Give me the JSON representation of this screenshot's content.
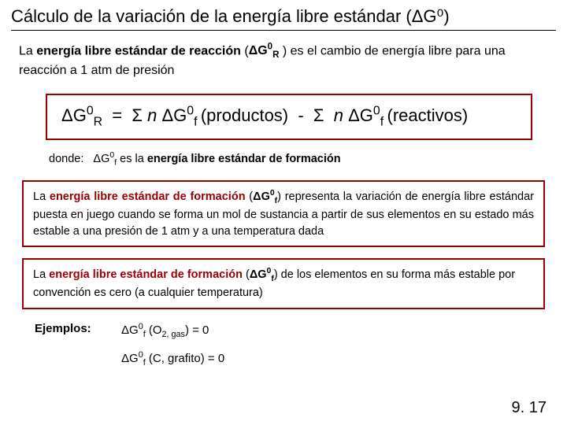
{
  "title": "Cálculo de la variación de la energía libre estándar (ΔG⁰)",
  "intro_html": "La <b>energía libre estándar de reacción</b> (<b>ΔG<span class='sup'>0</span><span class='sub'>R</span></b> ) es el cambio de energía libre para una reacción a 1 atm de presión",
  "formula_html": "ΔG<span class='sup'>0</span><span class='sub'>R</span>&nbsp; = &nbsp;Σ <i>n</i> ΔG<span class='sup'>0</span><span class='sub'>f </span>(productos) &nbsp;-&nbsp; Σ &nbsp;<i>n</i> ΔG<span class='sup'>0</span><span class='sub'>f </span>(reactivos)",
  "donde_html": "donde:&nbsp;&nbsp; ΔG<span class='sup'>0</span><span class='sub'>f</span> es la <b>energía libre estándar de formación</b>",
  "box1_html": "La <span class='darkred'>energía libre estándar de formación</span> (<b>ΔG<span class='sup'>0</span><span class='sub'>f</span></b>) representa la variación de energía libre estándar puesta en juego cuando se forma un mol de sustancia a partir de sus elementos en su estado más estable a una presión de 1 atm y a una temperatura dada",
  "box2_html": "La <span class='darkred'>energía libre estándar de formación</span> (<b>ΔG<span class='sup'>0</span><span class='sub'>f</span></b>) de los elementos en su forma más estable por convención es cero (a cualquier temperatura)",
  "ejemplos_label": "Ejemplos:",
  "ej1_html": "ΔG<span class='sup'>0</span><span class='sub'>f</span> (O<span class='sub'>2, gas</span>) = 0",
  "ej2_html": "ΔG<span class='sup'>0</span><span class='sub'>f</span> (C, grafito) = 0",
  "page_num": "9. 17",
  "colors": {
    "box_border": "#9a0000",
    "dark_red": "#9a0000",
    "text": "#000000",
    "bg": "#ffffff"
  }
}
